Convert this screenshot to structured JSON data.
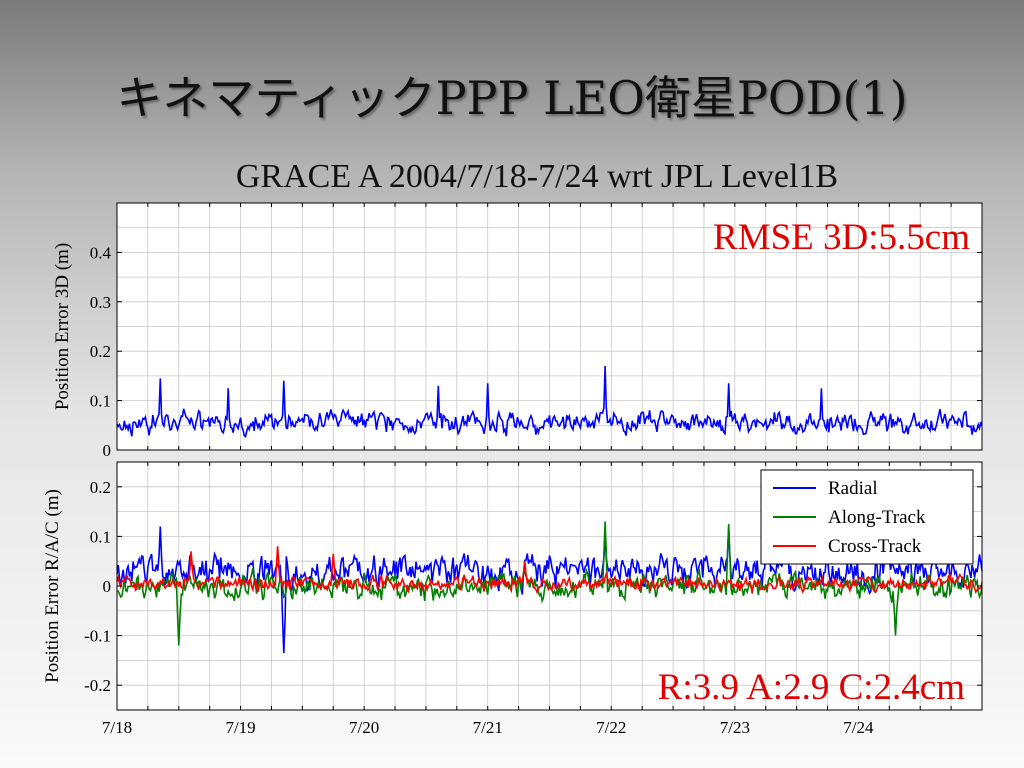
{
  "slide": {
    "title": "キネマティックPPP LEO衛星POD(1)",
    "subtitle": "GRACE A 2004/7/18-7/24 wrt JPL Level1B"
  },
  "colors": {
    "radial": "#0000ff",
    "along_track": "#008000",
    "cross_track": "#ff0000",
    "annotation": "#e00000"
  },
  "chart_data": [
    {
      "type": "line",
      "title": "",
      "xlabel": "",
      "ylabel": "Position Error 3D (m)",
      "x_tick_labels": [
        "7/18",
        "7/19",
        "7/20",
        "7/21",
        "7/22",
        "7/23",
        "7/24"
      ],
      "xlim": [
        0,
        7
      ],
      "ylim": [
        0,
        0.5
      ],
      "y_ticks": [
        "0",
        "0.1",
        "0.2",
        "0.3",
        "0.4"
      ],
      "grid": true,
      "annotation": "RMSE 3D:5.5cm",
      "series": [
        {
          "name": "",
          "color": "#0000ff",
          "baseline": 0.055,
          "amplitude": 0.03,
          "spikes": [
            [
              0.35,
              0.145
            ],
            [
              0.9,
              0.125
            ],
            [
              1.35,
              0.14
            ],
            [
              2.6,
              0.13
            ],
            [
              3.0,
              0.135
            ],
            [
              3.95,
              0.17
            ],
            [
              4.95,
              0.135
            ],
            [
              5.7,
              0.125
            ]
          ]
        }
      ]
    },
    {
      "type": "line",
      "title": "",
      "xlabel": "",
      "ylabel": "Position Error R/A/C (m)",
      "x_tick_labels": [
        "7/18",
        "7/19",
        "7/20",
        "7/21",
        "7/22",
        "7/23",
        "7/24"
      ],
      "xlim": [
        0,
        7
      ],
      "ylim": [
        -0.25,
        0.25
      ],
      "y_ticks": [
        "0.2",
        "0.1",
        "0",
        "-0.1",
        "-0.2"
      ],
      "grid": true,
      "legend_position": "top-right",
      "annotation": "R:3.9 A:2.9 C:2.4cm",
      "series": [
        {
          "name": "Radial",
          "color": "#0000ff",
          "baseline": 0.03,
          "amplitude": 0.045,
          "spikes": [
            [
              0.35,
              0.12
            ],
            [
              1.35,
              -0.135
            ],
            [
              3.95,
              0.11
            ],
            [
              4.95,
              0.115
            ]
          ]
        },
        {
          "name": "Along-Track",
          "color": "#008000",
          "baseline": 0.0,
          "amplitude": 0.035,
          "spikes": [
            [
              0.5,
              -0.12
            ],
            [
              3.95,
              0.13
            ],
            [
              4.95,
              0.125
            ],
            [
              6.3,
              -0.1
            ]
          ]
        },
        {
          "name": "Cross-Track",
          "color": "#ff0000",
          "baseline": 0.005,
          "amplitude": 0.02,
          "spikes": [
            [
              0.6,
              0.07
            ],
            [
              1.3,
              0.08
            ],
            [
              1.75,
              0.065
            ],
            [
              3.3,
              0.05
            ]
          ]
        }
      ]
    }
  ]
}
